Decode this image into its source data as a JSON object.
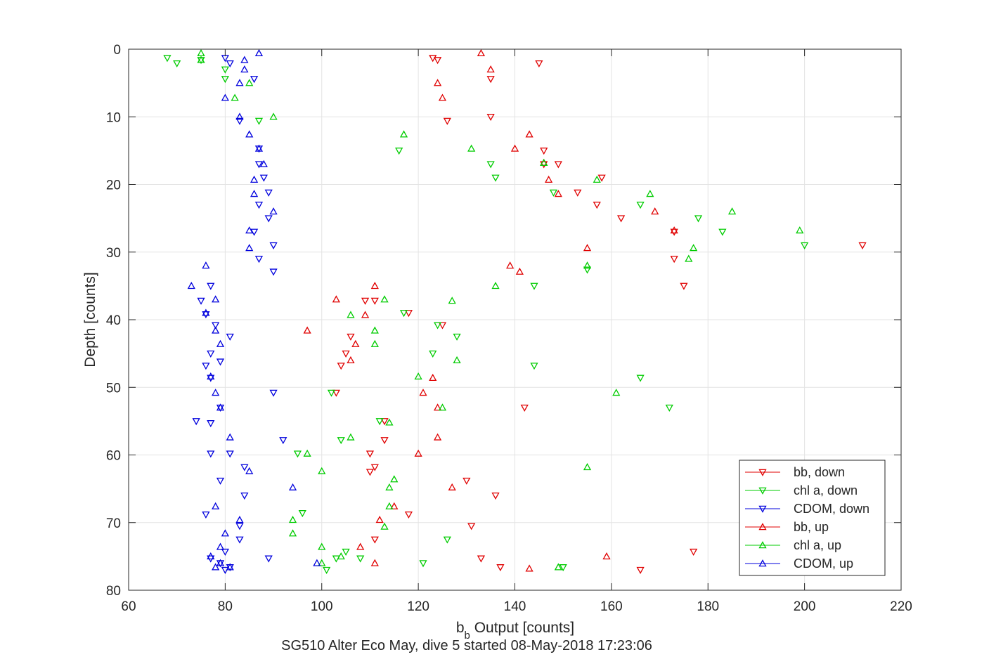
{
  "chart_data": {
    "type": "scatter",
    "title": "SG510 Alter Eco May, dive 5 started 08-May-2018 17:23:06",
    "xlabel": {
      "main": "b",
      "sub": "b",
      "rest": " Output [counts]"
    },
    "ylabel": "Depth [counts]",
    "xlim": [
      60,
      220
    ],
    "ylim": [
      0,
      80
    ],
    "y_reversed": true,
    "xticks": [
      60,
      80,
      100,
      120,
      140,
      160,
      180,
      200,
      220
    ],
    "yticks": [
      0,
      10,
      20,
      30,
      40,
      50,
      60,
      70,
      80
    ],
    "grid": true,
    "legend_position": "bottom-right",
    "series": [
      {
        "name": "bb, down",
        "marker": "triangle-down",
        "color": "#e00000",
        "points": [
          [
            123,
            1.3
          ],
          [
            124,
            1.6
          ],
          [
            145,
            2.1
          ],
          [
            135,
            4.4
          ],
          [
            135,
            10
          ],
          [
            126,
            10.6
          ],
          [
            146,
            15
          ],
          [
            146,
            17
          ],
          [
            149,
            17
          ],
          [
            158,
            19
          ],
          [
            153,
            21.2
          ],
          [
            157,
            23
          ],
          [
            162,
            25
          ],
          [
            173,
            27
          ],
          [
            212,
            29
          ],
          [
            173,
            31
          ],
          [
            175,
            35
          ],
          [
            111,
            37.2
          ],
          [
            109,
            37.2
          ],
          [
            118,
            39
          ],
          [
            125,
            40.8
          ],
          [
            106,
            42.5
          ],
          [
            105,
            45
          ],
          [
            104,
            46.8
          ],
          [
            103,
            50.8
          ],
          [
            142,
            53
          ],
          [
            113,
            55
          ],
          [
            113,
            57.8
          ],
          [
            110,
            59.8
          ],
          [
            111,
            61.8
          ],
          [
            110,
            62.5
          ],
          [
            130,
            63.8
          ],
          [
            136,
            66
          ],
          [
            118,
            68.8
          ],
          [
            131,
            70.5
          ],
          [
            111,
            72.5
          ],
          [
            133,
            75.3
          ],
          [
            137,
            76.6
          ],
          [
            166,
            77
          ],
          [
            177,
            74.3
          ]
        ]
      },
      {
        "name": "chl a, down",
        "marker": "triangle-down",
        "color": "#00cc00",
        "points": [
          [
            68,
            1.3
          ],
          [
            70,
            2.1
          ],
          [
            75,
            1.6
          ],
          [
            80,
            3
          ],
          [
            80,
            4.4
          ],
          [
            87,
            10.6
          ],
          [
            116,
            15
          ],
          [
            135,
            17
          ],
          [
            136,
            19
          ],
          [
            148,
            21.2
          ],
          [
            166,
            23
          ],
          [
            178,
            25
          ],
          [
            183,
            27
          ],
          [
            200,
            29
          ],
          [
            155,
            32.6
          ],
          [
            144,
            35
          ],
          [
            117,
            39
          ],
          [
            124,
            40.8
          ],
          [
            128,
            42.5
          ],
          [
            123,
            45
          ],
          [
            144,
            46.8
          ],
          [
            166,
            48.6
          ],
          [
            102,
            50.8
          ],
          [
            172,
            53
          ],
          [
            112,
            55
          ],
          [
            104,
            57.8
          ],
          [
            95,
            59.8
          ],
          [
            96,
            68.6
          ],
          [
            126,
            72.5
          ],
          [
            108,
            75.3
          ],
          [
            103,
            75.3
          ],
          [
            121,
            76
          ],
          [
            150,
            76.6
          ],
          [
            101,
            77
          ],
          [
            105,
            74.3
          ]
        ]
      },
      {
        "name": "CDOM, down",
        "marker": "triangle-down",
        "color": "#0000dd",
        "points": [
          [
            80,
            1.3
          ],
          [
            81,
            2.1
          ],
          [
            86,
            4.4
          ],
          [
            83,
            10.6
          ],
          [
            87,
            14.7
          ],
          [
            87,
            17
          ],
          [
            88,
            19
          ],
          [
            89,
            21.2
          ],
          [
            87,
            23
          ],
          [
            89,
            25
          ],
          [
            86,
            27
          ],
          [
            90,
            29
          ],
          [
            87,
            31
          ],
          [
            90,
            32.9
          ],
          [
            77,
            35
          ],
          [
            75,
            37.2
          ],
          [
            76,
            39.2
          ],
          [
            78,
            40.8
          ],
          [
            81,
            42.5
          ],
          [
            77,
            45
          ],
          [
            79,
            46.2
          ],
          [
            76,
            46.8
          ],
          [
            77,
            48.6
          ],
          [
            90,
            50.8
          ],
          [
            79,
            53
          ],
          [
            74,
            55
          ],
          [
            77,
            55.3
          ],
          [
            92,
            57.8
          ],
          [
            77,
            59.8
          ],
          [
            81,
            59.8
          ],
          [
            84,
            61.8
          ],
          [
            79,
            63.8
          ],
          [
            84,
            66
          ],
          [
            76,
            68.8
          ],
          [
            83,
            70.5
          ],
          [
            83,
            72.5
          ],
          [
            89,
            75.3
          ],
          [
            81,
            76.6
          ],
          [
            80,
            77
          ],
          [
            79,
            76
          ],
          [
            77,
            75.3
          ],
          [
            80,
            74.3
          ]
        ]
      },
      {
        "name": "bb, up",
        "marker": "triangle-up",
        "color": "#e00000",
        "points": [
          [
            133,
            0.6
          ],
          [
            135,
            3
          ],
          [
            124,
            5
          ],
          [
            125,
            7.2
          ],
          [
            143,
            12.6
          ],
          [
            140,
            14.7
          ],
          [
            146,
            16.8
          ],
          [
            147,
            19.3
          ],
          [
            149,
            21.4
          ],
          [
            169,
            24
          ],
          [
            173,
            26.8
          ],
          [
            155,
            29.4
          ],
          [
            139,
            32
          ],
          [
            141,
            32.9
          ],
          [
            111,
            35
          ],
          [
            103,
            37
          ],
          [
            109,
            39.3
          ],
          [
            97,
            41.6
          ],
          [
            107,
            43.6
          ],
          [
            106,
            46
          ],
          [
            123,
            48.6
          ],
          [
            121,
            50.8
          ],
          [
            124,
            53
          ],
          [
            124,
            57.4
          ],
          [
            120,
            59.8
          ],
          [
            115,
            67.6
          ],
          [
            127,
            64.8
          ],
          [
            112,
            69.6
          ],
          [
            108,
            73.6
          ],
          [
            111,
            76
          ],
          [
            143,
            76.8
          ],
          [
            159,
            75
          ]
        ]
      },
      {
        "name": "chl a, up",
        "marker": "triangle-up",
        "color": "#00cc00",
        "points": [
          [
            75,
            0.6
          ],
          [
            75,
            1.6
          ],
          [
            85,
            5
          ],
          [
            82,
            7.2
          ],
          [
            90,
            10
          ],
          [
            117,
            12.6
          ],
          [
            131,
            14.7
          ],
          [
            146,
            16.8
          ],
          [
            157,
            19.3
          ],
          [
            168,
            21.4
          ],
          [
            185,
            24
          ],
          [
            199,
            26.8
          ],
          [
            177,
            29.4
          ],
          [
            176,
            31
          ],
          [
            155,
            32
          ],
          [
            136,
            35
          ],
          [
            113,
            37
          ],
          [
            127,
            37.2
          ],
          [
            106,
            39.3
          ],
          [
            111,
            41.6
          ],
          [
            111,
            43.6
          ],
          [
            128,
            46
          ],
          [
            120,
            48.4
          ],
          [
            161,
            50.8
          ],
          [
            125,
            53
          ],
          [
            114,
            55.2
          ],
          [
            106,
            57.4
          ],
          [
            97,
            59.8
          ],
          [
            100,
            62.4
          ],
          [
            155,
            61.8
          ],
          [
            115,
            63.6
          ],
          [
            114,
            64.8
          ],
          [
            114,
            67.6
          ],
          [
            113,
            70.6
          ],
          [
            94,
            69.6
          ],
          [
            94,
            71.6
          ],
          [
            100,
            73.6
          ],
          [
            104,
            75
          ],
          [
            100,
            76
          ],
          [
            149,
            76.6
          ]
        ]
      },
      {
        "name": "CDOM, up",
        "marker": "triangle-up",
        "color": "#0000dd",
        "points": [
          [
            87,
            0.6
          ],
          [
            84,
            1.6
          ],
          [
            84,
            3
          ],
          [
            83,
            5
          ],
          [
            80,
            7.2
          ],
          [
            83,
            10
          ],
          [
            85,
            12.6
          ],
          [
            87,
            14.7
          ],
          [
            88,
            17
          ],
          [
            86,
            19.3
          ],
          [
            86,
            21.4
          ],
          [
            90,
            24
          ],
          [
            85,
            26.8
          ],
          [
            85,
            29.4
          ],
          [
            76,
            32
          ],
          [
            73,
            35
          ],
          [
            78,
            37
          ],
          [
            76,
            39
          ],
          [
            78,
            41.6
          ],
          [
            79,
            43.6
          ],
          [
            77,
            48.4
          ],
          [
            78,
            50.8
          ],
          [
            79,
            53
          ],
          [
            81,
            57.4
          ],
          [
            85,
            62.4
          ],
          [
            94,
            64.8
          ],
          [
            78,
            67.6
          ],
          [
            83,
            69.6
          ],
          [
            80,
            71.6
          ],
          [
            79,
            73.6
          ],
          [
            77,
            75
          ],
          [
            79,
            76
          ],
          [
            78,
            76.6
          ],
          [
            99,
            76
          ],
          [
            81,
            76.6
          ]
        ]
      }
    ]
  }
}
